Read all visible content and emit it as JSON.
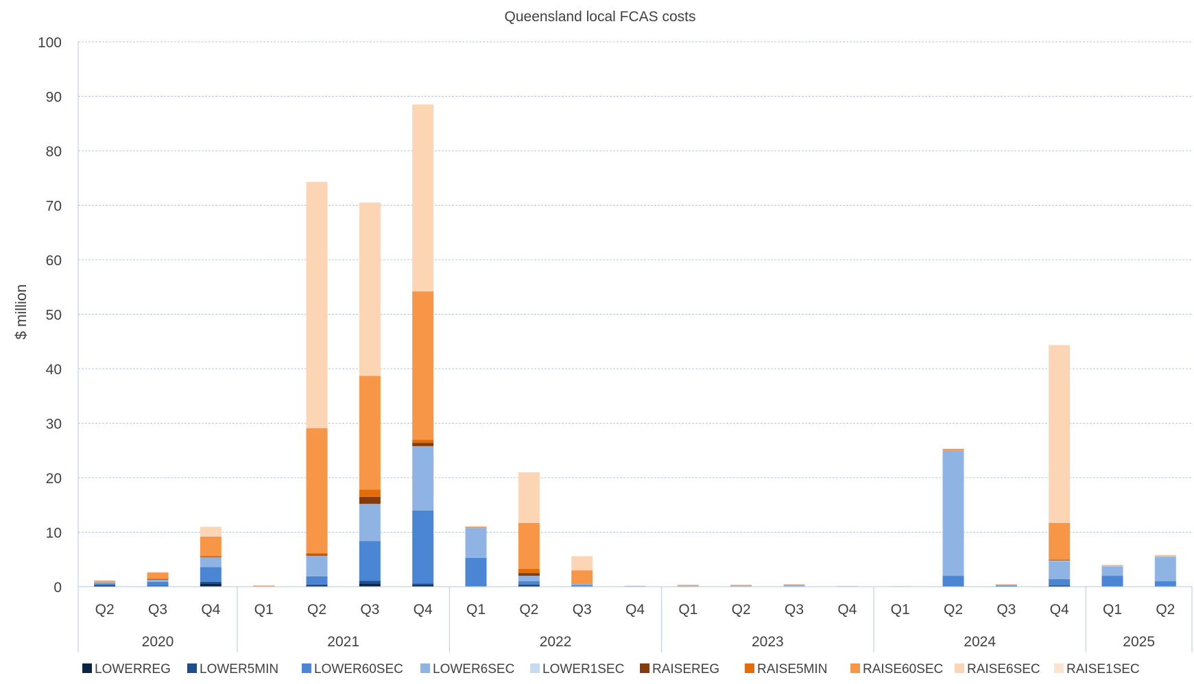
{
  "chart_data": {
    "type": "bar",
    "stacked": true,
    "title": "Queensland local FCAS costs",
    "ylabel": "$ million",
    "xlabel": "",
    "ylim": [
      0,
      100
    ],
    "yticks": [
      0,
      10,
      20,
      30,
      40,
      50,
      60,
      70,
      80,
      90,
      100
    ],
    "grid": true,
    "legend_position": "bottom",
    "categories": [
      "Q2",
      "Q3",
      "Q4",
      "Q1",
      "Q2",
      "Q3",
      "Q4",
      "Q1",
      "Q2",
      "Q3",
      "Q4",
      "Q1",
      "Q2",
      "Q3",
      "Q4",
      "Q1",
      "Q2",
      "Q3",
      "Q4",
      "Q1",
      "Q2"
    ],
    "years": [
      {
        "label": "2020",
        "count": 3
      },
      {
        "label": "2021",
        "count": 4
      },
      {
        "label": "2022",
        "count": 4
      },
      {
        "label": "2023",
        "count": 4
      },
      {
        "label": "2024",
        "count": 4
      },
      {
        "label": "2025",
        "count": 2
      }
    ],
    "series": [
      {
        "name": "LOWERREG",
        "color": "#0b2545",
        "values": [
          0.2,
          0.1,
          0.5,
          0.05,
          0.2,
          0.5,
          0.3,
          0.1,
          0.2,
          0.1,
          0.0,
          0.0,
          0.0,
          0.0,
          0.0,
          0.0,
          0.1,
          0.1,
          0.2,
          0.1,
          0.1
        ]
      },
      {
        "name": "LOWER5MIN",
        "color": "#1f4e8c",
        "values": [
          0.1,
          0.1,
          0.4,
          0.0,
          0.2,
          0.6,
          0.3,
          0.0,
          0.2,
          0.0,
          0.0,
          0.0,
          0.0,
          0.0,
          0.0,
          0.0,
          0.0,
          0.0,
          0.0,
          0.0,
          0.0
        ]
      },
      {
        "name": "LOWER60SEC",
        "color": "#4a86d4",
        "values": [
          0.3,
          0.7,
          2.7,
          0.05,
          1.5,
          7.3,
          13.4,
          5.2,
          0.6,
          0.2,
          0.1,
          0.1,
          0.1,
          0.1,
          0.05,
          0.0,
          1.9,
          0.1,
          1.2,
          1.9,
          0.9
        ]
      },
      {
        "name": "LOWER6SEC",
        "color": "#8fb4e3",
        "values": [
          0.3,
          0.4,
          1.8,
          0.05,
          3.8,
          6.8,
          11.8,
          5.5,
          1.0,
          0.2,
          0.05,
          0.1,
          0.1,
          0.2,
          0.05,
          0.05,
          23.0,
          0.1,
          3.3,
          1.7,
          4.5
        ]
      },
      {
        "name": "LOWER1SEC",
        "color": "#c6dbf3",
        "values": [
          0,
          0,
          0,
          0,
          0,
          0,
          0,
          0,
          0,
          0,
          0,
          0,
          0,
          0,
          0,
          0,
          0,
          0,
          0.1,
          0.1,
          0.1
        ]
      },
      {
        "name": "RAISEREG",
        "color": "#843c0c",
        "values": [
          0.0,
          0.1,
          0.1,
          0.0,
          0.2,
          1.3,
          0.6,
          0.0,
          0.5,
          0.0,
          0.0,
          0.0,
          0.0,
          0.0,
          0.0,
          0.0,
          0.0,
          0.0,
          0.1,
          0.0,
          0.0
        ]
      },
      {
        "name": "RAISE5MIN",
        "color": "#e46c0a",
        "values": [
          0.0,
          0.1,
          0.1,
          0.0,
          0.3,
          1.3,
          0.6,
          0.0,
          0.8,
          0.0,
          0.0,
          0.0,
          0.0,
          0.0,
          0.0,
          0.0,
          0.0,
          0.0,
          0.1,
          0.0,
          0.0
        ]
      },
      {
        "name": "RAISE60SEC",
        "color": "#f79646",
        "values": [
          0.2,
          1.1,
          3.6,
          0.05,
          22.9,
          20.9,
          27.2,
          0.2,
          8.4,
          2.5,
          0.0,
          0.1,
          0.1,
          0.1,
          0.0,
          0.0,
          0.3,
          0.1,
          6.7,
          0.1,
          0.1
        ]
      },
      {
        "name": "RAISE6SEC",
        "color": "#fcd5b4",
        "values": [
          0.1,
          0.1,
          1.8,
          0.05,
          45.2,
          31.8,
          34.3,
          0.1,
          9.3,
          2.6,
          0.0,
          0.1,
          0.1,
          0.1,
          0.0,
          0.05,
          0.0,
          0.1,
          32.6,
          0.1,
          0.1
        ]
      },
      {
        "name": "RAISE1SEC",
        "color": "#fde4d0",
        "values": [
          0,
          0,
          0,
          0,
          0,
          0,
          0,
          0,
          0,
          0,
          0,
          0,
          0,
          0,
          0,
          0,
          0,
          0,
          0.1,
          0.1,
          0.1
        ]
      }
    ]
  }
}
